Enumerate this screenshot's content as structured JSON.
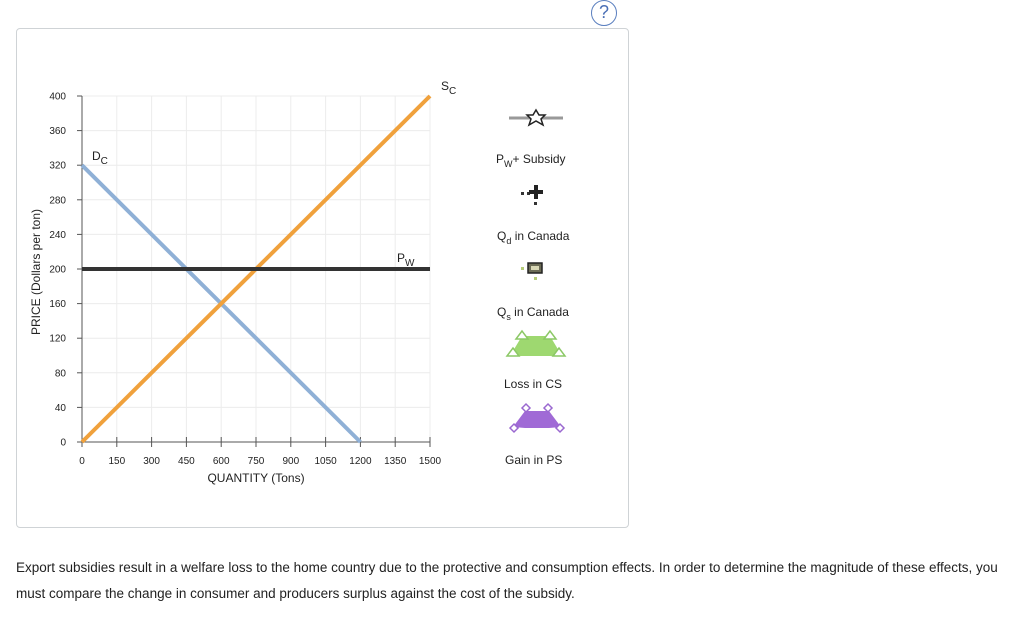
{
  "help_icon_label": "?",
  "chart_data": {
    "type": "line",
    "xlabel": "QUANTITY (Tons)",
    "ylabel": "PRICE (Dollars per ton)",
    "xlim": [
      0,
      1500
    ],
    "ylim": [
      0,
      400
    ],
    "x_ticks": [
      0,
      150,
      300,
      450,
      600,
      750,
      900,
      1050,
      1200,
      1350,
      1500
    ],
    "y_ticks": [
      0,
      40,
      80,
      120,
      160,
      200,
      240,
      280,
      320,
      360,
      400
    ],
    "grid": true,
    "series": [
      {
        "name": "Dc",
        "sub": "C",
        "color": "#8fb0d6",
        "points": [
          [
            0,
            320
          ],
          [
            1200,
            0
          ]
        ]
      },
      {
        "name": "Sc",
        "sub": "C",
        "color": "#f0a13c",
        "points": [
          [
            0,
            0
          ],
          [
            1500,
            400
          ]
        ]
      },
      {
        "name": "Pw",
        "sub": "W",
        "color": "#333333",
        "points": [
          [
            0,
            200
          ],
          [
            1500,
            200
          ]
        ]
      }
    ],
    "curve_labels": [
      {
        "main": "D",
        "sub": "C"
      },
      {
        "main": "S",
        "sub": "C"
      },
      {
        "main": "P",
        "sub": "W"
      }
    ],
    "legend": [
      {
        "label_main": "P",
        "label_sub": "W",
        "label_rest": "+ Subsidy",
        "icon": "gray-line-star-marker-icon"
      },
      {
        "label_main": "Q",
        "label_sub": "d",
        "label_rest": " in Canada",
        "icon": "black-plus-marker-icon"
      },
      {
        "label_main": "Q",
        "label_sub": "s",
        "label_rest": " in Canada",
        "icon": "olive-square-marker-icon"
      },
      {
        "label_main": "",
        "label_sub": "",
        "label_rest": "Loss in CS",
        "icon": "green-triangle-area-icon"
      },
      {
        "label_main": "",
        "label_sub": "",
        "label_rest": "Gain in PS",
        "icon": "purple-diamond-area-icon"
      }
    ]
  },
  "caption": "Export subsidies result in a welfare loss to the home country due to the protective and consumption effects. In order to determine the magnitude of these effects, you must compare the change in consumer and producers surplus against the cost of the subsidy."
}
